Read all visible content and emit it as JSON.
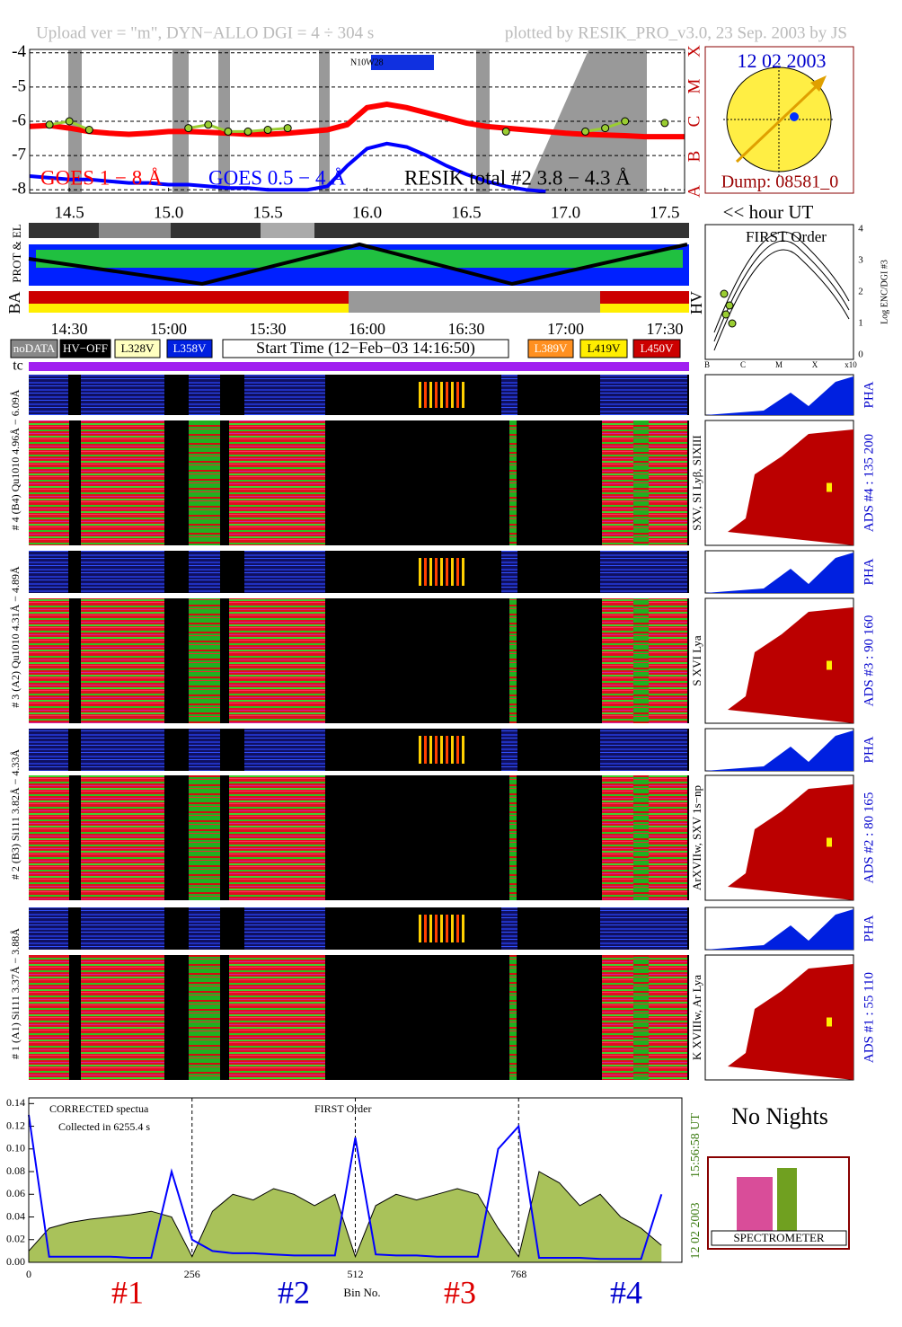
{
  "header": {
    "left": "Upload ver = \"m\", DYN−ALLO DGI =   4 ÷ 304 s",
    "right": "plotted by RESIK_PRO_v3.0, 23 Sep. 2003 by JS"
  },
  "chart_data": [
    {
      "type": "line",
      "x": [
        14.3,
        14.4,
        14.5,
        14.6,
        14.7,
        14.8,
        14.9,
        15.0,
        15.1,
        15.2,
        15.3,
        15.4,
        15.5,
        15.6,
        15.7,
        15.8,
        15.9,
        16.0,
        16.1,
        16.2,
        16.3,
        16.4,
        16.5,
        16.6,
        16.7,
        16.8,
        16.9,
        17.0,
        17.1,
        17.2,
        17.3,
        17.4,
        17.5,
        17.6
      ],
      "series": [
        {
          "name": "GOES 1 − 8 Å",
          "color": "#ff0000",
          "values": [
            -6.15,
            -6.12,
            -6.2,
            -6.3,
            -6.35,
            -6.38,
            -6.35,
            -6.3,
            -6.3,
            -6.32,
            -6.35,
            -6.38,
            -6.38,
            -6.35,
            -6.3,
            -6.25,
            -6.1,
            -5.6,
            -5.5,
            -5.6,
            -5.75,
            -5.9,
            -6.05,
            -6.15,
            -6.2,
            -6.25,
            -6.3,
            -6.35,
            -6.38,
            -6.4,
            -6.42,
            -6.45,
            -6.45,
            -6.45
          ]
        },
        {
          "name": "GOES 0.5 − 4 Å",
          "color": "#0000ff",
          "values": [
            -7.6,
            -7.65,
            -7.7,
            -7.7,
            -7.75,
            -7.8,
            -7.8,
            -7.85,
            -7.85,
            -7.9,
            -7.95,
            -7.95,
            -8.0,
            -8.0,
            -8.0,
            -7.9,
            -7.3,
            -6.8,
            -6.65,
            -6.75,
            -7.0,
            -7.3,
            -7.55,
            -7.75,
            -7.9,
            -8.0,
            -8.05,
            null,
            null,
            null,
            null,
            null,
            null,
            null
          ]
        },
        {
          "name": "RESIK total #2  3.8 − 4.3 Å",
          "color": "#9acd32",
          "marker": "circle",
          "values": [
            null,
            -6.1,
            -6.0,
            -6.25,
            null,
            null,
            null,
            null,
            -6.2,
            -6.1,
            -6.3,
            -6.3,
            -6.25,
            -6.2,
            null,
            null,
            null,
            null,
            null,
            null,
            null,
            null,
            null,
            null,
            -6.3,
            null,
            null,
            null,
            -6.3,
            -6.2,
            -6.0,
            null,
            -6.05,
            null
          ]
        }
      ],
      "xlim": [
        14.3,
        17.6
      ],
      "xticks": [
        14.5,
        {
          "value": 15,
          "label": "15.0"
        },
        15.5,
        {
          "value": 16,
          "label": "16.0"
        },
        16.5,
        {
          "value": 17,
          "label": "17.0"
        },
        17.5
      ],
      "ylim": [
        -8.1,
        -3.9
      ],
      "yticks": [
        -4,
        -5,
        -6,
        -7,
        -8
      ],
      "grid": true,
      "x_label": "<< hour UT",
      "flare_classes": [
        "X",
        "M",
        "C",
        "B",
        "A"
      ],
      "annotation": "N10W28"
    },
    {
      "type": "line",
      "x": [
        0,
        32,
        64,
        96,
        128,
        160,
        192,
        224,
        256,
        288,
        320,
        352,
        384,
        416,
        448,
        480,
        512,
        544,
        576,
        608,
        640,
        672,
        704,
        736,
        768,
        800,
        832,
        864,
        896,
        928,
        960,
        992
      ],
      "series": [
        {
          "color": "#000000",
          "fill": "#a9c25a",
          "values": [
            0.01,
            0.03,
            0.035,
            0.038,
            0.04,
            0.042,
            0.045,
            0.04,
            0.005,
            0.045,
            0.06,
            0.055,
            0.065,
            0.06,
            0.05,
            0.06,
            0.005,
            0.05,
            0.06,
            0.055,
            0.06,
            0.065,
            0.06,
            0.03,
            0.005,
            0.08,
            0.07,
            0.05,
            0.06,
            0.04,
            0.03,
            0.015
          ]
        },
        {
          "color": "#0000ff",
          "values": [
            0.13,
            0.005,
            0.005,
            0.005,
            0.005,
            0.004,
            0.004,
            0.08,
            0.02,
            0.01,
            0.008,
            0.008,
            0.007,
            0.006,
            0.006,
            0.006,
            0.11,
            0.007,
            0.006,
            0.006,
            0.005,
            0.005,
            0.005,
            0.1,
            0.12,
            0.004,
            0.004,
            0.004,
            0.003,
            0.003,
            0.003,
            0.06
          ]
        }
      ],
      "xlim": [
        0,
        1024
      ],
      "xticks": [
        0,
        256,
        512,
        768
      ],
      "ylim": [
        0,
        0.145
      ],
      "yticks": [
        {
          "value": 0,
          "label": "0.00"
        },
        {
          "value": 0.02,
          "label": "0.02"
        },
        {
          "value": 0.04,
          "label": "0.04"
        },
        {
          "value": 0.06,
          "label": "0.06"
        },
        {
          "value": 0.08,
          "label": "0.08"
        },
        {
          "value": 0.1,
          "label": "0.10"
        },
        {
          "value": 0.12,
          "label": "0.12"
        },
        {
          "value": 0.14,
          "label": "0.14"
        }
      ],
      "x_label": "Bin No.",
      "annotations": [
        "CORRECTED spectua",
        "Collected in  6255.4 s",
        "FIRST Order"
      ],
      "side_labels": [
        "15:56:58 UT",
        "12 02 2003"
      ],
      "sections": [
        {
          "label": "#1",
          "color": "#dd0000"
        },
        {
          "label": "#2",
          "color": "#0000cc"
        },
        {
          "label": "#3",
          "color": "#dd0000"
        },
        {
          "label": "#4",
          "color": "#0000cc"
        }
      ]
    }
  ],
  "sun": {
    "date": "12 02 2003",
    "dump": "Dump: 08581_0"
  },
  "strips": {
    "prot": "PROT & EL",
    "ba": "BA",
    "hv": "HV",
    "tc": "tc"
  },
  "time_labels": [
    "14:30",
    "15:00",
    "15:30",
    "16:00",
    "16:30",
    "17:00",
    "17:30"
  ],
  "buttons": [
    "noDATA",
    "HV−OFF",
    "L328V",
    "L358V",
    "Start Time (12−Feb−03 14:16:50)",
    "L389V",
    "L419V",
    "L450V"
  ],
  "first_order": {
    "title": "FIRST Order",
    "yticks": [
      0,
      1,
      2,
      3,
      4
    ],
    "classes": [
      "B",
      "C",
      "M",
      "X",
      "x10"
    ],
    "y_label": "Log ENC/DGI #3"
  },
  "channels": [
    {
      "range": "# 4 (B4) Qu1010 4.96Å − 6.09Å",
      "lines": "SXV, SI Lyβ, SIXIII",
      "ads": "ADS #4 :   135 200",
      "pha": "PHA"
    },
    {
      "range": "# 3 (A2) Qu1010 4.31Å − 4.89Å",
      "lines": "S XVI Lya",
      "ads": "ADS #3 :   90 160",
      "pha": "PHA"
    },
    {
      "range": "# 2 (B3) Si111 3.82Å − 4.33Å",
      "lines": "ArXVIIw, SXV 1s−np",
      "ads": "ADS #2 :   80 165",
      "pha": "PHA"
    },
    {
      "range": "# 1 (A1) Si111 3.37Å − 3.88Å",
      "lines": "K XVIIIw, Ar Lya",
      "ads": "ADS #1 :   55 110",
      "pha": "PHA"
    }
  ],
  "no_nights": "No Nights",
  "logo": "SPECTROMETER"
}
